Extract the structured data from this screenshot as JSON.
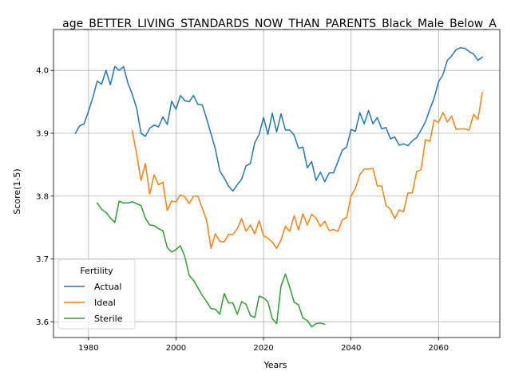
{
  "chart_data": {
    "type": "line",
    "title": "age_BETTER_LIVING_STANDARDS_NOW_THAN_PARENTS_Black_Male_Below_A",
    "xlabel": "Years",
    "ylabel": "Score(1-5)",
    "xlim": [
      1972,
      2074
    ],
    "ylim": [
      3.575,
      4.065
    ],
    "xticks": [
      1980,
      2000,
      2020,
      2040,
      2060
    ],
    "yticks": [
      3.6,
      3.7,
      3.8,
      3.9,
      4.0
    ],
    "xtick_labels": [
      "1980",
      "2000",
      "2020",
      "2040",
      "2060"
    ],
    "ytick_labels": [
      "3.6",
      "3.7",
      "3.8",
      "3.9",
      "4.0"
    ],
    "grid": true,
    "legend": {
      "title": "Fertility",
      "placement": "lower-left"
    },
    "series": [
      {
        "name": "Actual",
        "color": "#1f77b4",
        "x": [
          1977,
          1978,
          1979,
          1980,
          1981,
          1982,
          1983,
          1984,
          1985,
          1986,
          1987,
          1988,
          1989,
          1990,
          1991,
          1992,
          1993,
          1994,
          1995,
          1996,
          1997,
          1998,
          1999,
          2000,
          2001,
          2002,
          2003,
          2004,
          2005,
          2006,
          2007,
          2008,
          2009,
          2010,
          2011,
          2012,
          2013,
          2014,
          2015,
          2016,
          2017,
          2018,
          2019,
          2020,
          2021,
          2022,
          2023,
          2024,
          2025,
          2026,
          2027,
          2028,
          2029,
          2030,
          2031,
          2032,
          2033,
          2034,
          2035,
          2036,
          2037,
          2038,
          2039,
          2040,
          2041,
          2042,
          2043,
          2044,
          2045,
          2046,
          2047,
          2048,
          2049,
          2050,
          2051,
          2052,
          2053,
          2054,
          2055,
          2056,
          2057,
          2058,
          2059,
          2060,
          2061,
          2062,
          2063,
          2064,
          2065,
          2066,
          2067,
          2068,
          2069,
          2070
        ],
        "y": [
          3.9,
          3.912,
          3.915,
          3.935,
          3.957,
          3.983,
          3.978,
          4.0,
          3.977,
          4.006,
          4.0,
          4.006,
          3.98,
          3.962,
          3.94,
          3.9,
          3.895,
          3.908,
          3.913,
          3.91,
          3.926,
          3.914,
          3.951,
          3.938,
          3.96,
          3.952,
          3.95,
          3.96,
          3.946,
          3.945,
          3.923,
          3.899,
          3.875,
          3.84,
          3.829,
          3.816,
          3.808,
          3.818,
          3.827,
          3.848,
          3.852,
          3.885,
          3.898,
          3.925,
          3.898,
          3.932,
          3.902,
          3.931,
          3.905,
          3.905,
          3.897,
          3.876,
          3.878,
          3.845,
          3.855,
          3.825,
          3.838,
          3.823,
          3.837,
          3.837,
          3.855,
          3.873,
          3.878,
          3.906,
          3.903,
          3.933,
          3.915,
          3.936,
          3.915,
          3.925,
          3.907,
          3.909,
          3.891,
          3.894,
          3.881,
          3.883,
          3.88,
          3.888,
          3.893,
          3.905,
          3.918,
          3.938,
          3.956,
          3.982,
          3.993,
          4.016,
          4.023,
          4.033,
          4.036,
          4.035,
          4.03,
          4.026,
          4.016,
          4.021
        ]
      },
      {
        "name": "Ideal",
        "color": "#ff7f0e",
        "x": [
          1990,
          1991,
          1992,
          1993,
          1994,
          1995,
          1996,
          1997,
          1998,
          1999,
          2000,
          2001,
          2002,
          2003,
          2004,
          2005,
          2006,
          2007,
          2008,
          2009,
          2010,
          2011,
          2012,
          2013,
          2014,
          2015,
          2016,
          2017,
          2018,
          2019,
          2020,
          2021,
          2022,
          2023,
          2024,
          2025,
          2026,
          2027,
          2028,
          2029,
          2030,
          2031,
          2032,
          2033,
          2034,
          2035,
          2036,
          2037,
          2038,
          2039,
          2040,
          2041,
          2042,
          2043,
          2044,
          2045,
          2046,
          2047,
          2048,
          2049,
          2050,
          2051,
          2052,
          2053,
          2054,
          2055,
          2056,
          2057,
          2058,
          2059,
          2060,
          2061,
          2062,
          2063,
          2064,
          2065,
          2066,
          2067,
          2068,
          2069,
          2070
        ],
        "y": [
          3.904,
          3.867,
          3.825,
          3.852,
          3.803,
          3.834,
          3.818,
          3.822,
          3.777,
          3.792,
          3.791,
          3.802,
          3.799,
          3.788,
          3.8,
          3.8,
          3.781,
          3.761,
          3.717,
          3.74,
          3.728,
          3.727,
          3.739,
          3.739,
          3.748,
          3.764,
          3.744,
          3.754,
          3.74,
          3.761,
          3.737,
          3.733,
          3.727,
          3.717,
          3.73,
          3.752,
          3.744,
          3.769,
          3.746,
          3.772,
          3.754,
          3.771,
          3.765,
          3.752,
          3.76,
          3.745,
          3.747,
          3.744,
          3.762,
          3.766,
          3.8,
          3.812,
          3.834,
          3.843,
          3.843,
          3.844,
          3.816,
          3.816,
          3.785,
          3.779,
          3.764,
          3.778,
          3.775,
          3.805,
          3.805,
          3.839,
          3.842,
          3.89,
          3.887,
          3.921,
          3.917,
          3.933,
          3.918,
          3.927,
          3.906,
          3.907,
          3.907,
          3.905,
          3.93,
          3.922,
          3.965
        ]
      },
      {
        "name": "Sterile",
        "color": "#2ca02c",
        "x": [
          1982,
          1983,
          1984,
          1985,
          1986,
          1987,
          1988,
          1989,
          1990,
          1991,
          1992,
          1993,
          1994,
          1995,
          1996,
          1997,
          1998,
          1999,
          2000,
          2001,
          2002,
          2003,
          2004,
          2005,
          2006,
          2007,
          2008,
          2009,
          2010,
          2011,
          2012,
          2013,
          2014,
          2015,
          2016,
          2017,
          2018,
          2019,
          2020,
          2021,
          2022,
          2023,
          2024,
          2025,
          2026,
          2027,
          2028,
          2029,
          2030,
          2031,
          2032,
          2033,
          2034
        ],
        "y": [
          3.789,
          3.779,
          3.774,
          3.765,
          3.758,
          3.792,
          3.789,
          3.789,
          3.791,
          3.788,
          3.785,
          3.765,
          3.754,
          3.753,
          3.748,
          3.745,
          3.718,
          3.711,
          3.715,
          3.721,
          3.704,
          3.674,
          3.666,
          3.654,
          3.642,
          3.632,
          3.621,
          3.62,
          3.612,
          3.645,
          3.63,
          3.63,
          3.612,
          3.632,
          3.628,
          3.61,
          3.607,
          3.641,
          3.638,
          3.632,
          3.605,
          3.597,
          3.657,
          3.676,
          3.655,
          3.631,
          3.627,
          3.606,
          3.602,
          3.592,
          3.597,
          3.598,
          3.596
        ]
      }
    ]
  }
}
